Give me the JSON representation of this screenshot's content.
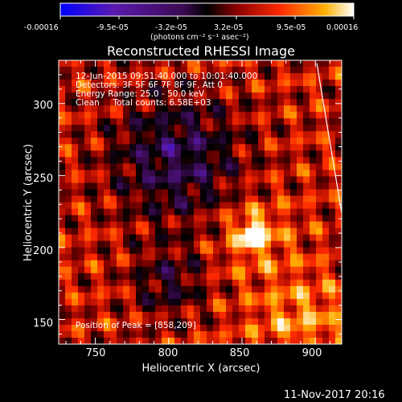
{
  "chart_data": {
    "type": "heatmap",
    "title": "Reconstructed RHESSI Image",
    "xlabel": "Heliocentric X (arcsec)",
    "ylabel": "Heliocentric Y (arcsec)",
    "xlim": [
      725,
      918
    ],
    "ylim": [
      133,
      330
    ],
    "x_ticks": [
      750,
      800,
      850,
      900
    ],
    "y_ticks": [
      150,
      200,
      250,
      300
    ],
    "x_tick_labels": [
      "750",
      "800",
      "850",
      "900"
    ],
    "y_tick_labels": [
      "150",
      "200",
      "250",
      "300"
    ],
    "colorbar": {
      "range": [
        -0.00016,
        0.00016
      ],
      "tick_labels": [
        "-0.00016",
        "-9.5e-05",
        "-3.2e-05",
        "3.2e-05",
        "9.5e-05",
        "0.00016"
      ],
      "unit_label": "(photons cm⁻² s⁻¹ asec⁻²)",
      "colors": [
        "#0000ff",
        "#5a1ab0",
        "#3a0a50",
        "#000000",
        "#8a0000",
        "#ff2a00",
        "#ffb000",
        "#ffffff"
      ]
    },
    "annotations": {
      "time_range": "12-Jun-2015 09:51:40.000 to 10:01:40.000",
      "detectors": "Detectors: 3F 5F 6F 7F 8F 9F, Att 0",
      "energy_range": "Energy Range: 25.0 - 50.0 keV",
      "clean_counts": "Clean     Total counts: 6.58E+03",
      "peak_position": "Position of Peak = [858,209]"
    },
    "peak": {
      "x": 858,
      "y": 209
    },
    "solar_limb": {
      "x": [
        901,
        918
      ],
      "y": [
        328,
        224
      ]
    }
  },
  "footer": {
    "timestamp": "11-Nov-2017 20:16"
  }
}
